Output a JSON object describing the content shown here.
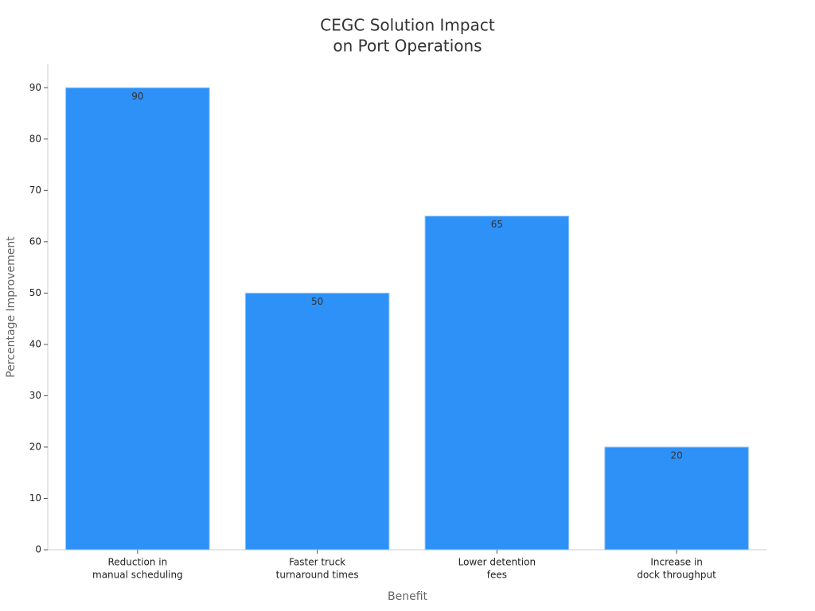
{
  "chart_data": {
    "type": "bar",
    "title": [
      "CEGC Solution Impact",
      "on Port Operations"
    ],
    "xlabel": "Benefit",
    "ylabel": "Percentage Improvement",
    "categories": [
      [
        "Reduction in",
        "manual scheduling"
      ],
      [
        "Faster truck",
        "turnaround times"
      ],
      [
        "Lower detention",
        "fees"
      ],
      [
        "Increase in",
        "dock throughput"
      ]
    ],
    "values": [
      90,
      50,
      65,
      20
    ],
    "color": "#2e91f8",
    "ylim": [
      0,
      95
    ],
    "yticks": [
      0,
      10,
      20,
      30,
      40,
      50,
      60,
      70,
      80,
      90
    ],
    "grid": false
  }
}
